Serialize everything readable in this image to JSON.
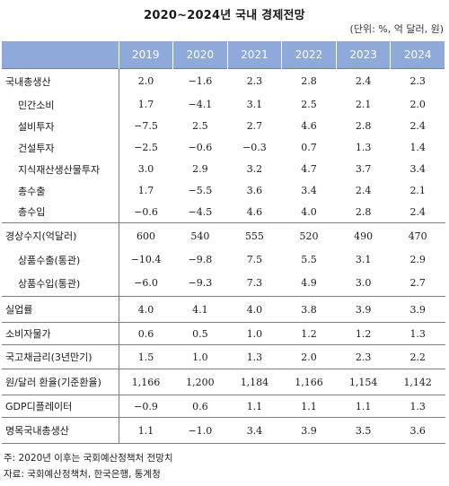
{
  "title": "2020~2024년 국내 경제전망",
  "unit": "(단위: %, 억 달러, 원)",
  "columns": [
    "2019",
    "2020",
    "2021",
    "2022",
    "2023",
    "2024"
  ],
  "rows": [
    {
      "label": "국내총생산",
      "indent": 0,
      "values": [
        "2.0",
        "−1.6",
        "2.3",
        "2.8",
        "2.4",
        "2.3"
      ]
    },
    {
      "label": "민간소비",
      "indent": 1,
      "values": [
        "1.7",
        "−4.1",
        "3.1",
        "2.5",
        "2.1",
        "2.0"
      ]
    },
    {
      "label": "설비투자",
      "indent": 1,
      "values": [
        "−7.5",
        "2.5",
        "2.7",
        "4.6",
        "2.8",
        "2.4"
      ]
    },
    {
      "label": "건설투자",
      "indent": 1,
      "values": [
        "−2.5",
        "−0.6",
        "−0.3",
        "0.7",
        "1.3",
        "1.4"
      ]
    },
    {
      "label": "지식재산생산물투자",
      "indent": 1,
      "values": [
        "3.0",
        "2.9",
        "3.2",
        "4.7",
        "3.7",
        "3.4"
      ]
    },
    {
      "label": "총수출",
      "indent": 1,
      "values": [
        "1.7",
        "−5.5",
        "3.6",
        "3.4",
        "2.4",
        "2.1"
      ]
    },
    {
      "label": "총수입",
      "indent": 1,
      "values": [
        "−0.6",
        "−4.5",
        "4.6",
        "4.0",
        "2.8",
        "2.4"
      ]
    },
    {
      "label": "경상수지(억달러)",
      "indent": 0,
      "values": [
        "600",
        "540",
        "555",
        "520",
        "490",
        "470"
      ]
    },
    {
      "label": "상품수출(통관)",
      "indent": 1,
      "values": [
        "−10.4",
        "−9.8",
        "7.5",
        "5.5",
        "3.1",
        "2.9"
      ]
    },
    {
      "label": "상품수입(통관)",
      "indent": 1,
      "values": [
        "−6.0",
        "−9.3",
        "7.3",
        "4.9",
        "3.0",
        "2.7"
      ]
    },
    {
      "label": "실업률",
      "indent": 0,
      "values": [
        "4.0",
        "4.1",
        "4.0",
        "3.8",
        "3.9",
        "3.9"
      ]
    },
    {
      "label": "소비자물가",
      "indent": 0,
      "values": [
        "0.6",
        "0.5",
        "1.0",
        "1.2",
        "1.2",
        "1.3"
      ]
    },
    {
      "label": "국고채금리(3년만기)",
      "indent": 0,
      "values": [
        "1.5",
        "1.0",
        "1.3",
        "2.0",
        "2.3",
        "2.2"
      ]
    },
    {
      "label": "원/달러 환율(기준환율)",
      "indent": 0,
      "values": [
        "1,166",
        "1,200",
        "1,184",
        "1,166",
        "1,154",
        "1,142"
      ]
    },
    {
      "label": "GDP디플레이터",
      "indent": 0,
      "values": [
        "−0.9",
        "0.6",
        "1.1",
        "1.1",
        "1.1",
        "1.3"
      ]
    },
    {
      "label": "명목국내총생산",
      "indent": 0,
      "values": [
        "1.1",
        "−1.0",
        "3.4",
        "3.9",
        "3.5",
        "3.6"
      ]
    }
  ],
  "notes": {
    "note1": "주: 2020년 이후는 국회예산정책처 전망치",
    "note2": "자료: 국회예산정책처, 한국은행, 통계청"
  },
  "colors": {
    "header_bg": "#8eaadb",
    "header_text": "#ffffff",
    "rule": "#7f7f7f"
  }
}
